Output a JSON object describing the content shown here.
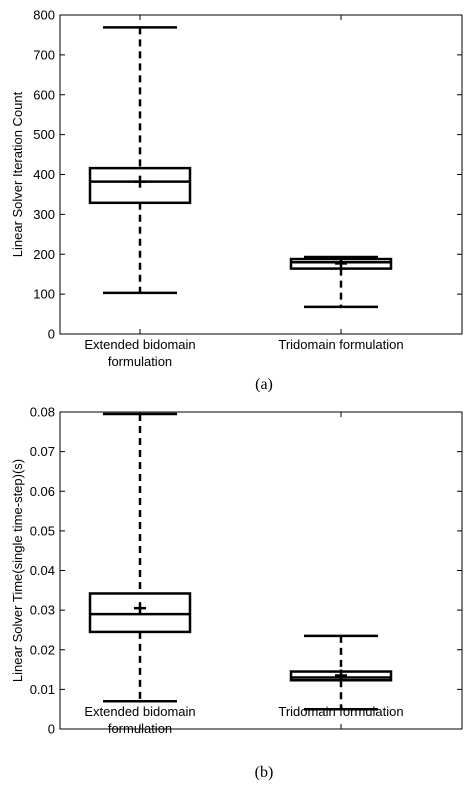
{
  "chart_data": [
    {
      "type": "box",
      "panel_label": "(a)",
      "ylabel": "Linear Solver Iteration Count",
      "ylim": [
        0,
        800
      ],
      "yticks": [
        "0",
        "100",
        "200",
        "300",
        "400",
        "500",
        "600",
        "700",
        "800"
      ],
      "ytick_values": [
        0,
        100,
        200,
        300,
        400,
        500,
        600,
        700,
        800
      ],
      "grid": false,
      "categories": [
        [
          "Extended bidomain",
          "formulation"
        ],
        [
          "Tridomain formulation"
        ]
      ],
      "boxes": [
        {
          "whisker_low": 103,
          "q1": 329,
          "median": 382,
          "q3": 416,
          "whisker_high": 769,
          "mean": 382
        },
        {
          "whisker_low": 68,
          "q1": 164,
          "median": 180,
          "q3": 188,
          "whisker_high": 193,
          "mean": 177
        }
      ]
    },
    {
      "type": "box",
      "panel_label": "(b)",
      "ylabel": "Linear Solver Time(single time-step)(s)",
      "ylim": [
        0,
        0.08
      ],
      "yticks": [
        "0",
        "0.01",
        "0.02",
        "0.03",
        "0.04",
        "0.05",
        "0.06",
        "0.07",
        "0.08"
      ],
      "ytick_values": [
        0,
        0.01,
        0.02,
        0.03,
        0.04,
        0.05,
        0.06,
        0.07,
        0.08
      ],
      "grid": false,
      "categories": [
        [
          "Extended bidomain",
          "formulation"
        ],
        [
          "Tridomain formulation"
        ]
      ],
      "boxes": [
        {
          "whisker_low": 0.007,
          "q1": 0.0245,
          "median": 0.029,
          "q3": 0.0342,
          "whisker_high": 0.0795,
          "mean": 0.0305
        },
        {
          "whisker_low": 0.005,
          "q1": 0.0123,
          "median": 0.013,
          "q3": 0.0145,
          "whisker_high": 0.0235,
          "mean": 0.0135
        }
      ]
    }
  ]
}
